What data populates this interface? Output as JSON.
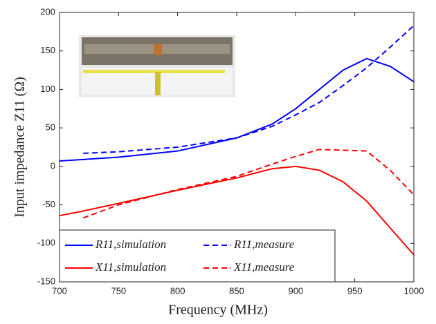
{
  "chart_data": {
    "type": "line",
    "xlabel": "Frequency (MHz)",
    "ylabel": "Input impedance Z11 (Ω)",
    "x": [
      700,
      720,
      750,
      800,
      850,
      880,
      900,
      920,
      940,
      960,
      980,
      1000
    ],
    "series": [
      {
        "name": "R11,simulation",
        "color": "#0000ff",
        "linestyle": "solid",
        "values": [
          7,
          9,
          12,
          20,
          37,
          55,
          75,
          100,
          125,
          140,
          130,
          110
        ]
      },
      {
        "name": "R11,measure",
        "color": "#0000ff",
        "linestyle": "dashed",
        "values": [
          null,
          17,
          19,
          25,
          37,
          52,
          67,
          83,
          105,
          128,
          155,
          183
        ]
      },
      {
        "name": "X11,simulation",
        "color": "#ff0000",
        "linestyle": "solid",
        "values": [
          -64,
          -58,
          -48,
          -31,
          -15,
          -3,
          0,
          -5,
          -20,
          -45,
          -80,
          -115
        ]
      },
      {
        "name": "X11,measure",
        "color": "#ff0000",
        "linestyle": "dashed",
        "values": [
          null,
          -67,
          -50,
          -30,
          -13,
          3,
          13,
          22,
          21,
          20,
          -5,
          -37
        ]
      }
    ],
    "xlim": [
      700,
      1000
    ],
    "xticks": [
      700,
      750,
      800,
      850,
      900,
      950,
      1000
    ],
    "ylim": [
      -150,
      200
    ],
    "yticks": [
      -150,
      -100,
      -50,
      0,
      50,
      100,
      150,
      200
    ],
    "grid": false,
    "legend": "lower left"
  }
}
